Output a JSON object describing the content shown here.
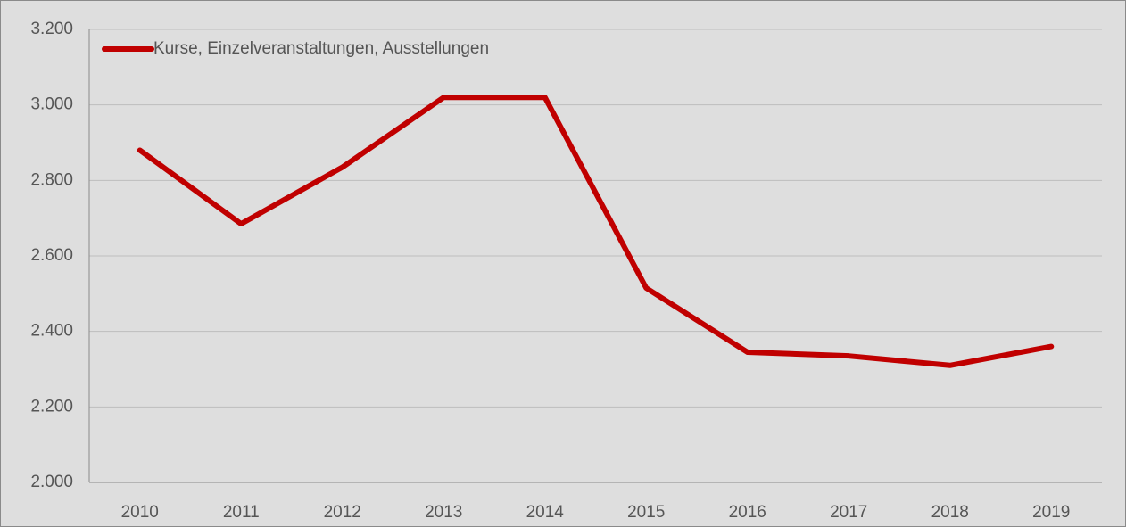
{
  "chart_data": {
    "type": "line",
    "categories": [
      "2010",
      "2011",
      "2012",
      "2013",
      "2014",
      "2015",
      "2016",
      "2017",
      "2018",
      "2019"
    ],
    "series": [
      {
        "name": "Kurse, Einzelveranstaltungen, Ausstellungen",
        "color": "#c00000",
        "values": [
          2880,
          2685,
          2835,
          3020,
          3020,
          2515,
          2345,
          2335,
          2310,
          2360
        ]
      }
    ],
    "ylim": [
      2000,
      3200
    ],
    "yticks": [
      {
        "value": 2000,
        "label": "2.000"
      },
      {
        "value": 2200,
        "label": "2.200"
      },
      {
        "value": 2400,
        "label": "2.400"
      },
      {
        "value": 2600,
        "label": "2.600"
      },
      {
        "value": 2800,
        "label": "2.800"
      },
      {
        "value": 3000,
        "label": "3.000"
      },
      {
        "value": 3200,
        "label": "3.200"
      }
    ],
    "grid": true,
    "legend": "upper left"
  }
}
